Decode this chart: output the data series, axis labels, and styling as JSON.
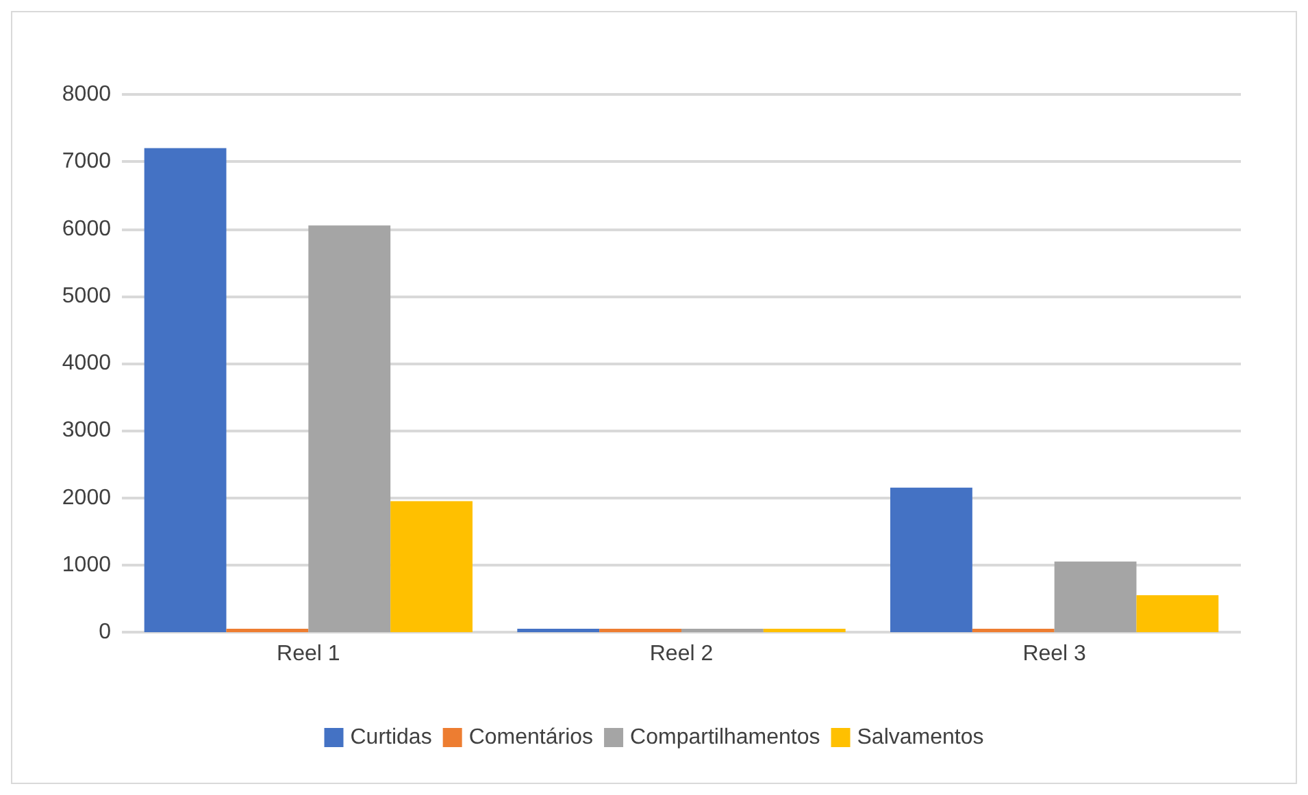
{
  "chart_data": {
    "type": "bar",
    "categories": [
      "Reel 1",
      "Reel 2",
      "Reel 3"
    ],
    "series": [
      {
        "name": "Curtidas",
        "color": "#4472c4",
        "values": [
          7200,
          50,
          2150
        ]
      },
      {
        "name": "Comentários",
        "color": "#ed7d31",
        "values": [
          50,
          50,
          50
        ]
      },
      {
        "name": "Compartilhamentos",
        "color": "#a5a5a5",
        "values": [
          6050,
          50,
          1050
        ]
      },
      {
        "name": "Salvamentos",
        "color": "#ffc000",
        "values": [
          1950,
          50,
          550
        ]
      }
    ],
    "ylim": [
      0,
      8000
    ],
    "yticks": [
      0,
      1000,
      2000,
      3000,
      4000,
      5000,
      6000,
      7000,
      8000
    ],
    "grid": "y",
    "legend": "bottom"
  }
}
